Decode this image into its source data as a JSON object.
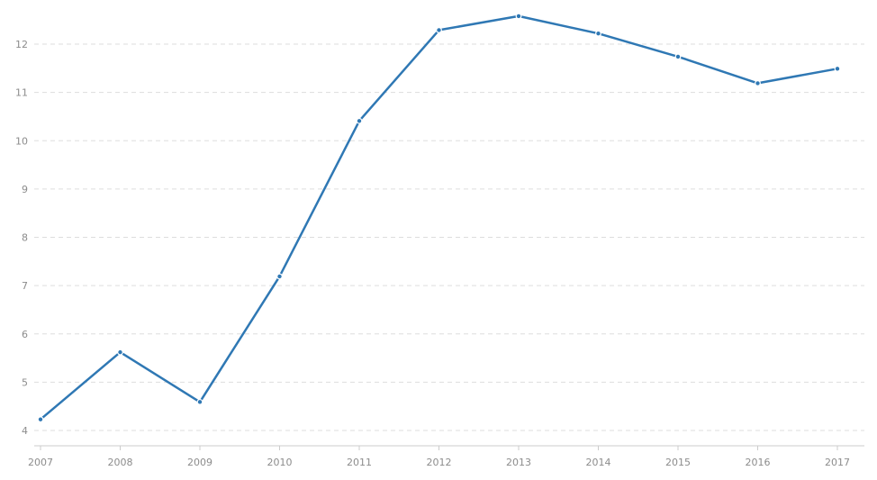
{
  "chart_data": {
    "type": "line",
    "title": "",
    "xlabel": "",
    "ylabel": "",
    "x": [
      "2007",
      "2008",
      "2009",
      "2010",
      "2011",
      "2012",
      "2013",
      "2014",
      "2015",
      "2016",
      "2017"
    ],
    "series": [
      {
        "values": [
          4.23,
          5.62,
          4.59,
          7.19,
          10.41,
          12.29,
          12.58,
          12.22,
          11.74,
          11.19,
          11.49
        ],
        "color": "#2f78b4"
      }
    ],
    "yticks": [
      "4",
      "5",
      "6",
      "7",
      "8",
      "9",
      "10",
      "11",
      "12"
    ],
    "ylim": [
      4,
      12.6
    ],
    "grid": true,
    "legend": "none"
  }
}
